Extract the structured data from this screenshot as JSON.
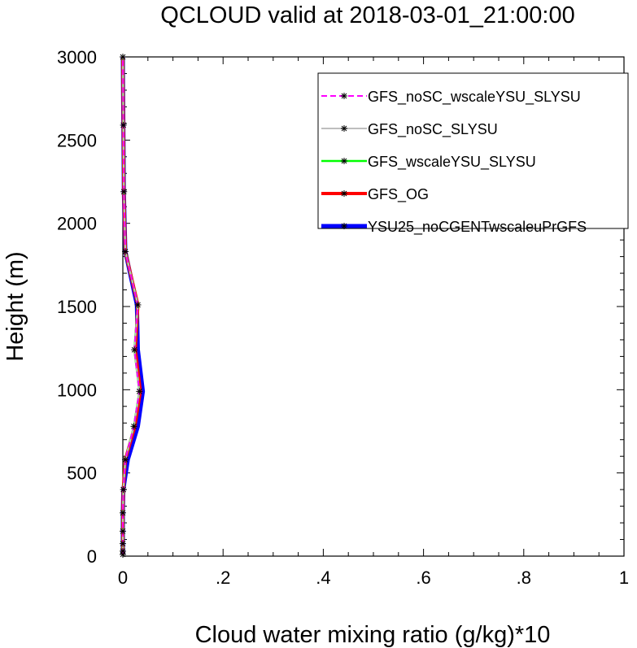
{
  "chart_data": {
    "type": "line",
    "title": "QCLOUD valid at 2018-03-01_21:00:00",
    "xlabel": "Cloud water mixing ratio (g/kg)*10",
    "ylabel": "Height (m)",
    "xlim": [
      0,
      1
    ],
    "ylim": [
      0,
      3000
    ],
    "x_ticks": [
      {
        "value": 0,
        "label": "0"
      },
      {
        "value": 0.2,
        "label": ".2"
      },
      {
        "value": 0.4,
        "label": ".4"
      },
      {
        "value": 0.6,
        "label": ".6"
      },
      {
        "value": 0.8,
        "label": ".8"
      },
      {
        "value": 1,
        "label": "1"
      }
    ],
    "y_ticks": [
      {
        "value": 0,
        "label": "0"
      },
      {
        "value": 500,
        "label": "500"
      },
      {
        "value": 1000,
        "label": "1000"
      },
      {
        "value": 1500,
        "label": "1500"
      },
      {
        "value": 2000,
        "label": "2000"
      },
      {
        "value": 2500,
        "label": "2500"
      },
      {
        "value": 3000,
        "label": "3000"
      }
    ],
    "heights": [
      10,
      30,
      75,
      150,
      260,
      400,
      580,
      780,
      990,
      1240,
      1510,
      1830,
      2190,
      2590,
      3000
    ],
    "legend_position": "top-right",
    "grid": false,
    "series": [
      {
        "name": "YSU25_noCGENTwscaleuPrGFS",
        "color": "#0000ff",
        "dashed": false,
        "values": [
          0,
          0,
          0,
          0,
          0,
          0.001,
          0.01,
          0.03,
          0.04,
          0.03,
          0.028,
          0.005,
          0.002,
          0.001,
          0
        ]
      },
      {
        "name": "GFS_OG",
        "color": "#ff0000",
        "dashed": false,
        "values": [
          0,
          0,
          0,
          0,
          0,
          0.001,
          0.005,
          0.024,
          0.035,
          0.025,
          0.03,
          0.005,
          0.002,
          0.001,
          0
        ]
      },
      {
        "name": "GFS_wscaleYSU_SLYSU",
        "color": "#00ff00",
        "dashed": false,
        "values": [
          0,
          0,
          0,
          0,
          0,
          0.001,
          0.005,
          0.022,
          0.033,
          0.023,
          0.03,
          0.005,
          0.002,
          0.001,
          0
        ]
      },
      {
        "name": "GFS_noSC_SLYSU",
        "color": "#bebebe",
        "dashed": false,
        "values": [
          0,
          0,
          0,
          0,
          0,
          0.001,
          0.005,
          0.022,
          0.033,
          0.023,
          0.03,
          0.005,
          0.002,
          0.001,
          0
        ]
      },
      {
        "name": "GFS_noSC_wscaleYSU_SLYSU",
        "color": "#ff00ff",
        "dashed": true,
        "values": [
          0,
          0,
          0,
          0,
          0,
          0.001,
          0.005,
          0.022,
          0.033,
          0.023,
          0.03,
          0.005,
          0.002,
          0.001,
          0
        ]
      }
    ],
    "legend_order": [
      "GFS_noSC_wscaleYSU_SLYSU",
      "GFS_noSC_SLYSU",
      "GFS_wscaleYSU_SLYSU",
      "GFS_OG",
      "YSU25_noCGENTwscaleuPrGFS"
    ]
  }
}
